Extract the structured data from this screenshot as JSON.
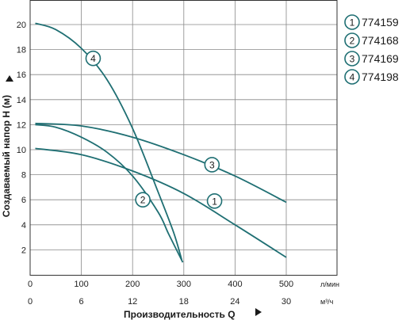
{
  "chart_data": {
    "type": "line",
    "title": "",
    "xlabel": "Производительность Q",
    "ylabel": "Создаваемый напор Н (м)",
    "x_unit_primary": "л/мин",
    "x_unit_secondary": "м³/ч",
    "x_ticks_primary": [
      0,
      100,
      200,
      300,
      400,
      500
    ],
    "x_ticks_secondary": [
      0,
      6,
      12,
      18,
      24,
      30
    ],
    "y_ticks": [
      2,
      4,
      6,
      8,
      10,
      12,
      14,
      16,
      18,
      20
    ],
    "xlim": [
      0,
      520
    ],
    "ylim": [
      0,
      21
    ],
    "grid": true,
    "legend_position": "top-right",
    "series": [
      {
        "name": "774159",
        "marker": "1",
        "marker_at": [
          360,
          5.9
        ],
        "points": [
          [
            10,
            10.1
          ],
          [
            100,
            9.6
          ],
          [
            200,
            8.3
          ],
          [
            300,
            6.5
          ],
          [
            400,
            4.0
          ],
          [
            500,
            1.4
          ]
        ]
      },
      {
        "name": "774168",
        "marker": "2",
        "marker_at": [
          220,
          6.0
        ],
        "points": [
          [
            10,
            12.0
          ],
          [
            50,
            11.8
          ],
          [
            100,
            11.0
          ],
          [
            150,
            9.8
          ],
          [
            200,
            7.9
          ],
          [
            250,
            5.0
          ],
          [
            270,
            3.3
          ],
          [
            298,
            1.0
          ]
        ]
      },
      {
        "name": "774169",
        "marker": "3",
        "marker_at": [
          355,
          8.8
        ],
        "points": [
          [
            10,
            12.1
          ],
          [
            100,
            11.9
          ],
          [
            200,
            11.0
          ],
          [
            300,
            9.6
          ],
          [
            400,
            7.9
          ],
          [
            500,
            5.8
          ]
        ]
      },
      {
        "name": "774198",
        "marker": "4",
        "marker_at": [
          123,
          17.3
        ],
        "points": [
          [
            10,
            20.1
          ],
          [
            50,
            19.6
          ],
          [
            100,
            18.1
          ],
          [
            150,
            15.6
          ],
          [
            200,
            11.7
          ],
          [
            250,
            6.6
          ],
          [
            280,
            3.4
          ],
          [
            296,
            1.2
          ]
        ]
      }
    ]
  }
}
